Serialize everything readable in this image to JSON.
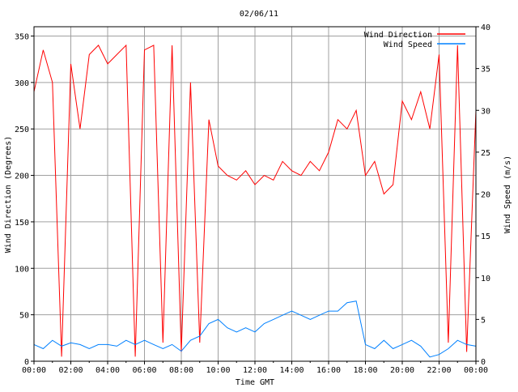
{
  "chart_data": {
    "type": "line",
    "title": "02/06/11",
    "xlabel": "Time GMT",
    "ylabel": "Wind Direction (Degrees)",
    "y2label": "Wind Speed (m/s)",
    "xlim": [
      0,
      24
    ],
    "ylim": [
      0,
      360
    ],
    "y2lim": [
      0,
      40
    ],
    "grid": true,
    "legend_position": "top-right",
    "x_tick_labels": [
      "00:00",
      "02:00",
      "04:00",
      "06:00",
      "08:00",
      "10:00",
      "12:00",
      "14:00",
      "16:00",
      "18:00",
      "20:00",
      "22:00",
      "00:00"
    ],
    "y_ticks": [
      0,
      50,
      100,
      150,
      200,
      250,
      300,
      350
    ],
    "y2_ticks": [
      0,
      5,
      10,
      15,
      20,
      25,
      30,
      35,
      40
    ],
    "x_hours": [
      0,
      0.5,
      1,
      1.5,
      2,
      2.5,
      3,
      3.5,
      4,
      4.5,
      5,
      5.5,
      6,
      6.5,
      7,
      7.5,
      8,
      8.5,
      9,
      9.5,
      10,
      10.5,
      11,
      11.5,
      12,
      12.5,
      13,
      13.5,
      14,
      14.5,
      15,
      15.5,
      16,
      16.5,
      17,
      17.5,
      18,
      18.5,
      19,
      19.5,
      20,
      20.5,
      21,
      21.5,
      22,
      22.5,
      23,
      23.5,
      24
    ],
    "series": [
      {
        "name": "Wind Direction",
        "axis": "left",
        "color": "#ff0000",
        "values": [
          290,
          335,
          300,
          5,
          320,
          250,
          330,
          340,
          320,
          330,
          340,
          5,
          335,
          340,
          20,
          340,
          10,
          300,
          20,
          260,
          210,
          200,
          195,
          205,
          190,
          200,
          195,
          215,
          205,
          200,
          215,
          205,
          225,
          260,
          250,
          270,
          200,
          215,
          180,
          190,
          280,
          260,
          290,
          250,
          330,
          20,
          340,
          10,
          270
        ]
      },
      {
        "name": "Wind Speed",
        "axis": "right",
        "color": "#0080ff",
        "values": [
          2,
          1.5,
          2.5,
          1.8,
          2.2,
          2,
          1.5,
          2,
          2,
          1.8,
          2.5,
          2,
          2.5,
          2,
          1.5,
          2,
          1.2,
          2.5,
          3,
          4.5,
          5,
          4,
          3.5,
          4,
          3.5,
          4.5,
          5,
          5.5,
          6,
          5.5,
          5,
          5.5,
          6,
          6,
          7,
          7.2,
          2,
          1.5,
          2.5,
          1.5,
          2,
          2.5,
          1.8,
          0.5,
          0.8,
          1.5,
          2.5,
          2,
          1.8
        ]
      }
    ]
  }
}
